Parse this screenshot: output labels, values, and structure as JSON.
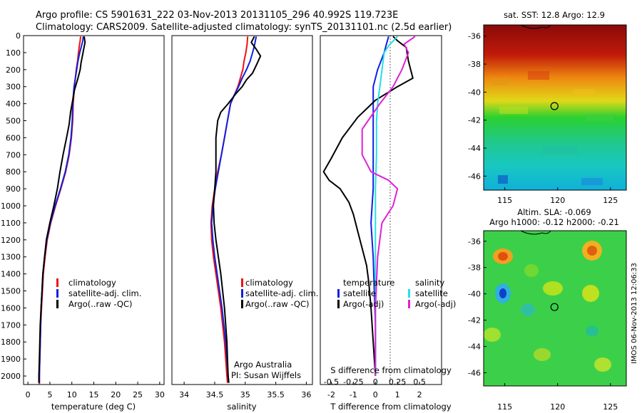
{
  "header": {
    "title_line1": "Argo profile: CS 5901631_222 03-Nov-2013 20131105_296 40.992S 119.723E",
    "title_line2": "Climatology: CARS2009. Satellite-adjusted climatology: synTS_20131101.nc (2.5d earlier)"
  },
  "colors": {
    "climatology": "#ee1111",
    "satellite": "#1020e0",
    "argo": "#000000",
    "satellite_salinity": "#22e0e8",
    "argo_salinity_adj": "#e020d8"
  },
  "chart_data": [
    {
      "id": "temperature",
      "type": "line",
      "xlabel": "temperature (deg C)",
      "ylabel": "",
      "xlim": [
        -1,
        31
      ],
      "ylim": [
        2050,
        0
      ],
      "xticks": [
        0,
        5,
        10,
        15,
        20,
        25,
        30
      ],
      "yticks": [
        0,
        100,
        200,
        300,
        400,
        500,
        600,
        700,
        800,
        900,
        1000,
        1100,
        1200,
        1300,
        1400,
        1500,
        1600,
        1700,
        1800,
        1900,
        2000
      ],
      "legend": [
        "climatology",
        "satellite-adj. clim.",
        "Argo(..raw -QC)"
      ],
      "series": [
        {
          "name": "climatology",
          "color": "climatology",
          "points": [
            [
              12.0,
              5
            ],
            [
              11.9,
              30
            ],
            [
              11.7,
              60
            ],
            [
              11.5,
              100
            ],
            [
              11.3,
              150
            ],
            [
              11.0,
              200
            ],
            [
              10.6,
              300
            ],
            [
              10.3,
              400
            ],
            [
              10.2,
              500
            ],
            [
              9.9,
              600
            ],
            [
              9.4,
              700
            ],
            [
              8.6,
              800
            ],
            [
              7.5,
              900
            ],
            [
              6.3,
              1000
            ],
            [
              5.2,
              1100
            ],
            [
              4.4,
              1200
            ],
            [
              3.9,
              1300
            ],
            [
              3.5,
              1400
            ],
            [
              3.3,
              1500
            ],
            [
              3.1,
              1600
            ],
            [
              2.9,
              1700
            ],
            [
              2.8,
              1800
            ],
            [
              2.7,
              1900
            ],
            [
              2.6,
              2000
            ],
            [
              2.6,
              2050
            ]
          ]
        },
        {
          "name": "satellite-adj. clim.",
          "color": "satellite",
          "points": [
            [
              12.6,
              5
            ],
            [
              12.5,
              30
            ],
            [
              12.2,
              60
            ],
            [
              11.8,
              100
            ],
            [
              11.4,
              150
            ],
            [
              11.1,
              200
            ],
            [
              10.5,
              300
            ],
            [
              10.2,
              400
            ],
            [
              10.1,
              500
            ],
            [
              9.8,
              600
            ],
            [
              9.3,
              700
            ],
            [
              8.5,
              800
            ],
            [
              7.4,
              900
            ],
            [
              6.2,
              1000
            ],
            [
              5.1,
              1100
            ],
            [
              4.3,
              1200
            ],
            [
              3.8,
              1300
            ],
            [
              3.4,
              1400
            ],
            [
              3.2,
              1500
            ],
            [
              3.0,
              1600
            ],
            [
              2.9,
              1700
            ],
            [
              2.8,
              1800
            ],
            [
              2.7,
              1900
            ],
            [
              2.6,
              2000
            ],
            [
              2.6,
              2040
            ]
          ]
        },
        {
          "name": "Argo(..raw -QC)",
          "color": "argo",
          "points": [
            [
              12.8,
              5
            ],
            [
              13.0,
              40
            ],
            [
              12.7,
              80
            ],
            [
              12.4,
              120
            ],
            [
              12.1,
              160
            ],
            [
              11.9,
              200
            ],
            [
              11.4,
              250
            ],
            [
              10.6,
              320
            ],
            [
              10.2,
              380
            ],
            [
              9.7,
              450
            ],
            [
              9.4,
              520
            ],
            [
              8.8,
              600
            ],
            [
              8.0,
              700
            ],
            [
              7.3,
              800
            ],
            [
              6.7,
              900
            ],
            [
              5.9,
              1000
            ],
            [
              5.0,
              1100
            ],
            [
              4.2,
              1200
            ],
            [
              3.8,
              1300
            ],
            [
              3.4,
              1400
            ],
            [
              3.2,
              1500
            ],
            [
              3.0,
              1600
            ],
            [
              2.8,
              1700
            ],
            [
              2.7,
              1800
            ],
            [
              2.6,
              1900
            ],
            [
              2.5,
              2000
            ],
            [
              2.5,
              2040
            ]
          ]
        }
      ]
    },
    {
      "id": "salinity",
      "type": "line",
      "xlabel": "salinity",
      "ylabel": "",
      "xlim": [
        33.8,
        36.1
      ],
      "ylim": [
        2050,
        0
      ],
      "xticks": [
        34,
        34.5,
        35,
        35.5,
        36
      ],
      "xticklabels": [
        "34",
        "34.5",
        "35",
        "35.5",
        "36"
      ],
      "legend": [
        "climatology",
        "satellite-adj. clim.",
        "Argo(..raw -QC)"
      ],
      "annotation": [
        "Argo Australia",
        "PI: Susan Wijffels"
      ],
      "series": [
        {
          "name": "climatology",
          "color": "climatology",
          "points": [
            [
              35.04,
              5
            ],
            [
              35.03,
              50
            ],
            [
              35.01,
              100
            ],
            [
              34.98,
              150
            ],
            [
              34.96,
              200
            ],
            [
              34.92,
              250
            ],
            [
              34.88,
              300
            ],
            [
              34.82,
              350
            ],
            [
              34.76,
              400
            ],
            [
              34.71,
              500
            ],
            [
              34.66,
              600
            ],
            [
              34.61,
              700
            ],
            [
              34.55,
              800
            ],
            [
              34.5,
              900
            ],
            [
              34.46,
              1000
            ],
            [
              34.44,
              1100
            ],
            [
              34.45,
              1200
            ],
            [
              34.48,
              1300
            ],
            [
              34.52,
              1400
            ],
            [
              34.56,
              1500
            ],
            [
              34.6,
              1600
            ],
            [
              34.63,
              1700
            ],
            [
              34.66,
              1800
            ],
            [
              34.68,
              1900
            ],
            [
              34.7,
              2000
            ],
            [
              34.71,
              2040
            ]
          ]
        },
        {
          "name": "satellite-adj. clim.",
          "color": "satellite",
          "points": [
            [
              35.18,
              5
            ],
            [
              35.15,
              60
            ],
            [
              35.12,
              100
            ],
            [
              35.08,
              150
            ],
            [
              35.02,
              200
            ],
            [
              34.95,
              250
            ],
            [
              34.89,
              300
            ],
            [
              34.82,
              350
            ],
            [
              34.76,
              400
            ],
            [
              34.71,
              500
            ],
            [
              34.66,
              600
            ],
            [
              34.61,
              700
            ],
            [
              34.56,
              800
            ],
            [
              34.51,
              900
            ],
            [
              34.47,
              1000
            ],
            [
              34.45,
              1100
            ],
            [
              34.47,
              1200
            ],
            [
              34.5,
              1300
            ],
            [
              34.54,
              1400
            ],
            [
              34.58,
              1500
            ],
            [
              34.62,
              1600
            ],
            [
              34.65,
              1700
            ],
            [
              34.68,
              1800
            ],
            [
              34.7,
              1900
            ],
            [
              34.72,
              2000
            ],
            [
              34.73,
              2040
            ]
          ]
        },
        {
          "name": "Argo(..raw -QC)",
          "color": "argo",
          "points": [
            [
              35.15,
              5
            ],
            [
              35.1,
              40
            ],
            [
              35.18,
              80
            ],
            [
              35.25,
              120
            ],
            [
              35.2,
              160
            ],
            [
              35.12,
              220
            ],
            [
              35.02,
              260
            ],
            [
              34.95,
              300
            ],
            [
              34.85,
              340
            ],
            [
              34.72,
              400
            ],
            [
              34.6,
              450
            ],
            [
              34.55,
              500
            ],
            [
              34.52,
              600
            ],
            [
              34.52,
              700
            ],
            [
              34.52,
              800
            ],
            [
              34.5,
              900
            ],
            [
              34.48,
              1000
            ],
            [
              34.49,
              1100
            ],
            [
              34.52,
              1200
            ],
            [
              34.56,
              1300
            ],
            [
              34.6,
              1400
            ],
            [
              34.63,
              1500
            ],
            [
              34.66,
              1600
            ],
            [
              34.68,
              1700
            ],
            [
              34.7,
              1800
            ],
            [
              34.71,
              1900
            ],
            [
              34.72,
              2000
            ],
            [
              34.73,
              2040
            ]
          ]
        }
      ]
    },
    {
      "id": "difference",
      "type": "line",
      "xlabel": "T difference from climatology",
      "ylabel": "",
      "xlim": [
        -2.5,
        3
      ],
      "ylim": [
        2050,
        0
      ],
      "xticks": [
        -2,
        -1,
        0,
        1,
        2
      ],
      "top_axis_label": "S difference from climatology",
      "top_ticks": [
        -0.5,
        -0.25,
        0,
        0.25,
        0.5
      ],
      "top_ticklabels": [
        "-0.5",
        "-0.25",
        "0",
        "0.25",
        "0.5"
      ],
      "legend_temperature": {
        "title": "temperature",
        "items": [
          "satellite",
          "Argo(-adj)"
        ]
      },
      "legend_salinity": {
        "title": "salinity",
        "items": [
          "satellite",
          "Argo(-adj)"
        ]
      },
      "series": [
        {
          "name": "satellite",
          "color": "satellite",
          "points": [
            [
              0.6,
              5
            ],
            [
              0.5,
              50
            ],
            [
              0.4,
              100
            ],
            [
              0.1,
              200
            ],
            [
              -0.1,
              300
            ],
            [
              -0.1,
              400
            ],
            [
              -0.1,
              500
            ],
            [
              -0.1,
              600
            ],
            [
              -0.1,
              700
            ],
            [
              -0.1,
              800
            ],
            [
              -0.1,
              900
            ],
            [
              -0.15,
              1000
            ],
            [
              -0.2,
              1100
            ],
            [
              -0.15,
              1200
            ],
            [
              -0.1,
              1300
            ],
            [
              -0.05,
              1500
            ],
            [
              0,
              1700
            ],
            [
              0,
              2000
            ]
          ]
        },
        {
          "name": "Argo(-adj)",
          "color": "argo",
          "points": [
            [
              0.8,
              5
            ],
            [
              1.0,
              30
            ],
            [
              1.4,
              70
            ],
            [
              1.5,
              150
            ],
            [
              1.7,
              250
            ],
            [
              1.0,
              300
            ],
            [
              0,
              380
            ],
            [
              -0.8,
              480
            ],
            [
              -1.5,
              600
            ],
            [
              -2.0,
              720
            ],
            [
              -2.35,
              800
            ],
            [
              -2.1,
              850
            ],
            [
              -1.6,
              900
            ],
            [
              -1.2,
              980
            ],
            [
              -1.0,
              1050
            ],
            [
              -0.8,
              1150
            ],
            [
              -0.6,
              1250
            ],
            [
              -0.4,
              1350
            ],
            [
              -0.3,
              1450
            ],
            [
              -0.2,
              1600
            ],
            [
              -0.1,
              1800
            ],
            [
              0,
              2000
            ]
          ]
        },
        {
          "name": "salinity satellite",
          "color": "satellite_salinity",
          "points": [
            [
              1.0,
              5
            ],
            [
              0.6,
              60
            ],
            [
              0.4,
              100
            ],
            [
              0.3,
              200
            ],
            [
              0.2,
              300
            ],
            [
              0.1,
              400
            ],
            [
              0.05,
              500
            ],
            [
              0.05,
              700
            ],
            [
              0,
              900
            ],
            [
              0,
              1100
            ],
            [
              0,
              1300
            ],
            [
              0,
              1600
            ],
            [
              0,
              2000
            ]
          ]
        },
        {
          "name": "salinity Argo(-adj)",
          "color": "argo_salinity_adj",
          "points": [
            [
              1.8,
              5
            ],
            [
              1.3,
              50
            ],
            [
              1.5,
              100
            ],
            [
              1.2,
              200
            ],
            [
              0.8,
              300
            ],
            [
              0.2,
              400
            ],
            [
              -0.6,
              550
            ],
            [
              -0.6,
              700
            ],
            [
              -0.2,
              800
            ],
            [
              0.6,
              850
            ],
            [
              1.0,
              900
            ],
            [
              0.8,
              1000
            ],
            [
              0.3,
              1100
            ],
            [
              0.1,
              1300
            ],
            [
              0,
              1600
            ],
            [
              0,
              2000
            ]
          ]
        }
      ]
    }
  ],
  "maps": [
    {
      "id": "sst",
      "title": "sat. SST: 12.8  Argo: 12.9",
      "xticks": [
        115,
        120,
        125
      ],
      "yticks": [
        "-36",
        "-38",
        "-40",
        "-42",
        "-44",
        "-46"
      ],
      "argo_marker": {
        "lon": 119.7,
        "lat": -41.0
      }
    },
    {
      "id": "sla",
      "title_line1": "Altim. SLA: -0.069",
      "title_line2": "Argo h1000: -0.12  h2000: -0.21",
      "xticks": [
        115,
        120,
        125
      ],
      "yticks": [
        "-36",
        "-38",
        "-40",
        "-42",
        "-44",
        "-46"
      ],
      "argo_marker": {
        "lon": 119.7,
        "lat": -41.0
      }
    }
  ],
  "footer": {
    "side_stamp": "IMOS 06-Nov-2013 12:06:33"
  }
}
